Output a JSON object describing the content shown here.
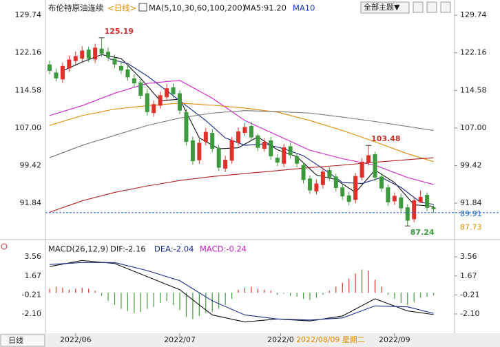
{
  "chart_data": [
    {
      "type": "candlestick",
      "title": "布伦特原油连续",
      "period": "<日线>",
      "indicator": "MA(5,10,30,60,100,200)",
      "ma5_label": "MA5:91.20",
      "ma10_label": "MA10",
      "theme_button": "全部主题▼",
      "up_color": "#e0302a",
      "down_color": "#3c9a3c",
      "ylim": [
        84.9,
        131.7
      ],
      "yticks": [
        91.84,
        99.42,
        {
          "value": 107,
          "label": "107.00"
        },
        114.58,
        122.16,
        129.74
      ],
      "xlim": [
        -0.5,
        62
      ],
      "xticks": [
        {
          "value": 4,
          "label": "2022/06"
        },
        {
          "value": 20,
          "label": "2022/07"
        },
        {
          "value": 35.5,
          "label": "2022/0"
        },
        {
          "value": 53,
          "label": "2022/09"
        }
      ],
      "crosshair_label": "2022/08/09 星期二",
      "period_button": "日线",
      "open": [
        119.8,
        118.2,
        116.8,
        119.0,
        120.5,
        121.0,
        122.8,
        120.8,
        123.0,
        122.4,
        121.0,
        119.5,
        118.8,
        117.0,
        116.2,
        114.0,
        110.0,
        111.5,
        113.2,
        115.2,
        114.0,
        110.2,
        104.5,
        100.5,
        104.2,
        106.0,
        103.0,
        98.8,
        100.4,
        104.0,
        106.0,
        107.4,
        105.5,
        102.8,
        104.5,
        101.0,
        99.8,
        103.3,
        101.3,
        99.5,
        96.8,
        94.2,
        95.5,
        98.5,
        97.2,
        95.0,
        93.4,
        92.5,
        97.0,
        100.0,
        101.7,
        97.2,
        95.0,
        92.2,
        93.0,
        91.0,
        88.6,
        92.0,
        93.5,
        91.0
      ],
      "high": [
        120.6,
        119.0,
        120.2,
        121.6,
        122.4,
        123.5,
        123.4,
        124.0,
        125.19,
        123.2,
        121.8,
        120.3,
        119.5,
        117.8,
        116.8,
        114.9,
        112.6,
        114.3,
        115.9,
        116.0,
        114.6,
        110.8,
        105.3,
        104.8,
        107.0,
        106.8,
        103.6,
        101.4,
        105.2,
        107.1,
        108.0,
        108.2,
        105.9,
        104.9,
        105.2,
        101.7,
        103.8,
        104.0,
        102.0,
        100.1,
        97.4,
        96.6,
        99.0,
        99.1,
        97.8,
        95.6,
        94.1,
        97.9,
        100.9,
        103.48,
        102.2,
        97.8,
        95.6,
        94.0,
        93.8,
        91.6,
        93.0,
        94.4,
        94.0,
        91.6
      ],
      "low": [
        117.8,
        116.4,
        116.1,
        118.3,
        119.8,
        120.4,
        120.3,
        120.1,
        121.4,
        120.5,
        119.1,
        117.9,
        116.5,
        115.3,
        112.8,
        109.5,
        109.3,
        110.9,
        112.5,
        113.1,
        109.8,
        103.5,
        99.6,
        99.8,
        103.5,
        102.1,
        98.3,
        98.1,
        99.8,
        103.4,
        105.4,
        104.4,
        102.3,
        102.2,
        100.6,
        99.3,
        99.1,
        100.8,
        99.1,
        95.8,
        93.7,
        93.6,
        94.8,
        96.3,
        94.2,
        92.5,
        91.4,
        91.8,
        96.4,
        99.4,
        96.3,
        94.1,
        91.3,
        91.5,
        90.1,
        87.24,
        88.0,
        92.3,
        90.2,
        89.9
      ],
      "close": [
        118.5,
        117.0,
        119.5,
        120.8,
        121.5,
        122.6,
        121.0,
        123.2,
        122.0,
        121.2,
        119.8,
        118.6,
        117.2,
        116.0,
        113.5,
        110.2,
        111.8,
        113.6,
        115.0,
        113.8,
        110.5,
        104.2,
        100.3,
        104.0,
        106.2,
        102.8,
        99.0,
        100.6,
        104.5,
        106.3,
        107.2,
        105.1,
        103.0,
        104.2,
        101.3,
        100.0,
        103.1,
        101.5,
        99.8,
        96.5,
        94.4,
        95.8,
        98.2,
        97.0,
        94.9,
        93.2,
        92.1,
        97.3,
        100.2,
        101.5,
        97.0,
        94.8,
        92.0,
        93.3,
        90.8,
        88.3,
        92.4,
        93.1,
        90.9,
        90.6
      ],
      "annotations": [
        {
          "index": 8,
          "field": "high",
          "color": "#d0302a"
        },
        {
          "index": 49,
          "field": "high",
          "color": "#d0302a"
        },
        {
          "index": 55,
          "field": "low",
          "color": "#3c9a3c"
        }
      ],
      "ma": [
        {
          "name": "MA5",
          "color": "#111111",
          "x": [
            2,
            5,
            8,
            11,
            14,
            17,
            20,
            23,
            26,
            29,
            32,
            35,
            38,
            41,
            44,
            47,
            50,
            53,
            56,
            59
          ],
          "values": [
            118.5,
            120.3,
            121.8,
            121.0,
            117.0,
            112.5,
            112.8,
            105.0,
            102.8,
            103.0,
            105.2,
            102.6,
            101.2,
            97.5,
            96.6,
            94.0,
            98.5,
            96.0,
            91.5,
            91.2
          ]
        },
        {
          "name": "MA10",
          "color": "#1a2a8a",
          "x": [
            9,
            12,
            15,
            18,
            21,
            24,
            27,
            30,
            33,
            36,
            39,
            42,
            45,
            48,
            51,
            54,
            57,
            59
          ],
          "values": [
            121.0,
            120.0,
            117.5,
            114.5,
            111.5,
            108.5,
            105.0,
            103.5,
            103.8,
            102.8,
            101.4,
            98.8,
            96.0,
            95.8,
            97.0,
            95.0,
            92.0,
            91.6
          ]
        },
        {
          "name": "MA30",
          "color": "#d020d0",
          "x": [
            0,
            5,
            10,
            15,
            20,
            25,
            30,
            35,
            40,
            45,
            50,
            55,
            59
          ],
          "values": [
            109.5,
            111.5,
            114.0,
            116.0,
            116.6,
            113.0,
            108.5,
            105.5,
            102.5,
            100.8,
            99.5,
            97.0,
            95.6
          ]
        },
        {
          "name": "MA60",
          "color": "#e08a00",
          "x": [
            0,
            5,
            10,
            15,
            20,
            25,
            30,
            35,
            40,
            45,
            50,
            55,
            59
          ],
          "values": [
            107.5,
            109.5,
            110.8,
            111.5,
            112.0,
            111.6,
            111.0,
            110.2,
            108.5,
            106.5,
            104.2,
            101.8,
            100.2
          ]
        },
        {
          "name": "MA100",
          "color": "#777777",
          "x": [
            0,
            5,
            10,
            15,
            20,
            25,
            30,
            35,
            40,
            45,
            50,
            55,
            59
          ],
          "values": [
            101.0,
            103.5,
            105.5,
            107.5,
            109.0,
            110.0,
            110.5,
            110.3,
            110.0,
            109.2,
            108.3,
            107.3,
            106.5
          ]
        },
        {
          "name": "MA200",
          "color": "#b02020",
          "x": [
            0,
            5,
            10,
            15,
            20,
            25,
            30,
            35,
            40,
            45,
            50,
            55,
            59
          ],
          "values": [
            90.0,
            92.3,
            94.0,
            95.3,
            96.4,
            97.2,
            97.8,
            98.4,
            99.0,
            99.5,
            100.1,
            100.6,
            101.0
          ]
        }
      ],
      "price_markers": [
        {
          "value": 89.91,
          "color": "#1a5cc8",
          "dashed": true
        },
        {
          "value": 87.73,
          "color": "#e08a00",
          "dashed": false
        }
      ]
    },
    {
      "type": "macd",
      "title": "MACD(26,12,9)",
      "dif_label": "DIF:-2.16",
      "dea_label": "DEA:-2.04",
      "macd_label": "MACD:-0.24",
      "ylim": [
        -3.74,
        5.0
      ],
      "yticks": [
        {
          "value": -2.1,
          "label": "-2.10"
        },
        -0.21,
        1.67,
        3.56
      ],
      "x": [
        0,
        5,
        10,
        15,
        20,
        25,
        30,
        35,
        40,
        45,
        50,
        55,
        59
      ],
      "series": [
        {
          "name": "DIF",
          "color": "#111111",
          "values": [
            2.6,
            3.2,
            2.9,
            1.6,
            0.3,
            -2.2,
            -2.9,
            -2.6,
            -2.8,
            -2.3,
            -0.6,
            -1.8,
            -2.16
          ]
        },
        {
          "name": "DEA",
          "color": "#1a2a8a",
          "values": [
            2.8,
            3.0,
            3.0,
            2.2,
            1.2,
            -0.8,
            -2.2,
            -2.6,
            -2.7,
            -2.5,
            -1.3,
            -1.4,
            -2.04
          ]
        }
      ],
      "histogram": [
        0.4,
        0.6,
        0.5,
        0.3,
        0.4,
        0.5,
        0.4,
        0.2,
        -0.3,
        -0.8,
        -1.2,
        -1.6,
        -1.8,
        -2.0,
        -1.9,
        -1.6,
        -1.4,
        -1.0,
        -0.8,
        -1.2,
        -1.7,
        -2.4,
        -2.6,
        -2.3,
        -2.0,
        -1.9,
        -1.6,
        -1.2,
        -0.6,
        0.3,
        0.5,
        0.6,
        0.4,
        0.3,
        0.2,
        -0.2,
        -0.1,
        -0.3,
        -0.4,
        -0.6,
        -0.7,
        -0.5,
        -0.2,
        0.2,
        0.6,
        1.0,
        1.4,
        1.9,
        2.3,
        2.2,
        1.3,
        0.6,
        -0.2,
        -0.6,
        -1.0,
        -1.2,
        -0.9,
        -0.5,
        -0.4,
        -0.24
      ],
      "up_color": "#e0302a",
      "down_color": "#3c9a3c"
    }
  ]
}
